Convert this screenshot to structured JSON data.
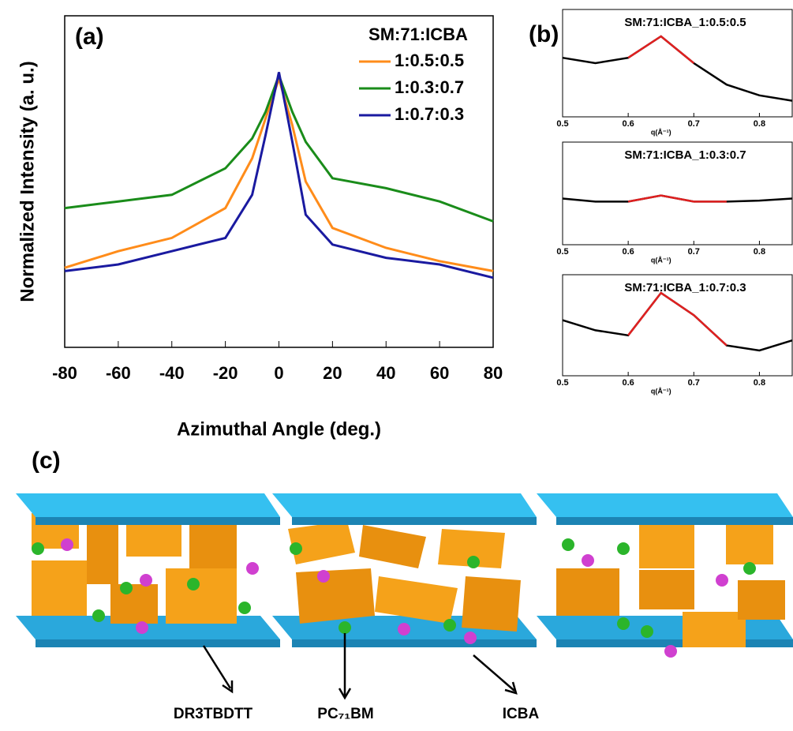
{
  "chart_data": [
    {
      "type": "line",
      "title": "(a)",
      "xlabel": "Azimuthal Angle (deg.)",
      "ylabel": "Normalized Intensity (a. u.)",
      "legend_title": "SM:71:ICBA",
      "legend": "upper right",
      "x": [
        -80,
        -60,
        -40,
        -20,
        -10,
        -5,
        0,
        5,
        10,
        20,
        40,
        60,
        80
      ],
      "xlim": [
        -80,
        80
      ],
      "xticks": [
        -80,
        -60,
        -40,
        -20,
        0,
        20,
        40,
        60,
        80
      ],
      "ylim": [
        0,
        1
      ],
      "series": [
        {
          "name": "1:0.5:0.5",
          "color": "#ff8c1a",
          "values": [
            0.24,
            0.29,
            0.33,
            0.42,
            0.57,
            0.69,
            0.81,
            0.67,
            0.5,
            0.36,
            0.3,
            0.26,
            0.23
          ]
        },
        {
          "name": "1:0.3:0.7",
          "color": "#1a8c1a",
          "values": [
            0.42,
            0.44,
            0.46,
            0.54,
            0.63,
            0.71,
            0.82,
            0.71,
            0.62,
            0.51,
            0.48,
            0.44,
            0.38
          ]
        },
        {
          "name": "1:0.7:0.3",
          "color": "#1a1aa0",
          "values": [
            0.23,
            0.25,
            0.29,
            0.33,
            0.46,
            0.64,
            0.83,
            0.62,
            0.4,
            0.31,
            0.27,
            0.25,
            0.21
          ]
        }
      ]
    },
    {
      "type": "line",
      "title": "SM:71:ICBA_1:0.5:0.5",
      "panel_label": "(b)",
      "xlabel": "q(Å⁻¹)",
      "x": [
        0.5,
        0.55,
        0.6,
        0.65,
        0.7,
        0.75,
        0.8,
        0.85
      ],
      "xlim": [
        0.5,
        0.85
      ],
      "xticks": [
        0.5,
        0.6,
        0.7,
        0.8
      ],
      "ylim": [
        0,
        1
      ],
      "series": [
        {
          "color": "#000000",
          "values": [
            0.55,
            0.5,
            0.55,
            0.75,
            0.5,
            0.3,
            0.2,
            0.15
          ]
        },
        {
          "color": "#e02020",
          "values": [
            null,
            null,
            0.55,
            0.75,
            0.5,
            null,
            null,
            null
          ]
        }
      ]
    },
    {
      "type": "line",
      "title": "SM:71:ICBA_1:0.3:0.7",
      "xlabel": "q(Å⁻¹)",
      "x": [
        0.5,
        0.55,
        0.6,
        0.65,
        0.7,
        0.75,
        0.8,
        0.85
      ],
      "xlim": [
        0.5,
        0.85
      ],
      "xticks": [
        0.5,
        0.6,
        0.7,
        0.8
      ],
      "ylim": [
        0,
        1
      ],
      "series": [
        {
          "color": "#000000",
          "values": [
            0.45,
            0.42,
            0.42,
            0.48,
            0.42,
            0.42,
            0.43,
            0.45
          ]
        },
        {
          "color": "#e02020",
          "values": [
            null,
            null,
            0.42,
            0.48,
            0.42,
            0.42,
            null,
            null
          ]
        }
      ]
    },
    {
      "type": "line",
      "title": "SM:71:ICBA_1:0.7:0.3",
      "xlabel": "q(Å⁻¹)",
      "x": [
        0.5,
        0.55,
        0.6,
        0.65,
        0.7,
        0.75,
        0.8,
        0.85
      ],
      "xlim": [
        0.5,
        0.85
      ],
      "xticks": [
        0.5,
        0.6,
        0.7,
        0.8
      ],
      "ylim": [
        0,
        1
      ],
      "series": [
        {
          "color": "#000000",
          "values": [
            0.55,
            0.45,
            0.4,
            0.82,
            0.6,
            0.3,
            0.25,
            0.35
          ]
        },
        {
          "color": "#e02020",
          "values": [
            null,
            null,
            0.4,
            0.82,
            0.6,
            0.3,
            null,
            null
          ]
        }
      ]
    }
  ],
  "diagram": {
    "panel_label": "(c)",
    "labels": [
      "DR3TBDTT",
      "PC₇₁BM",
      "ICBA"
    ]
  }
}
